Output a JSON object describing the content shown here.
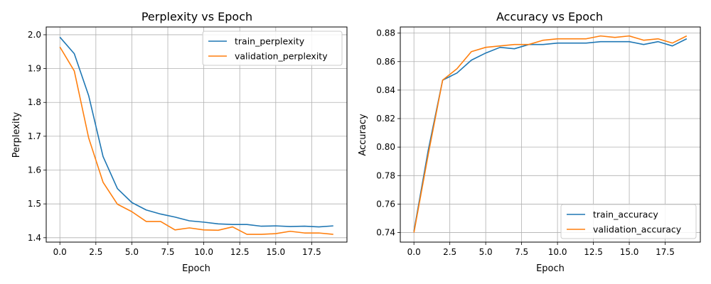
{
  "chart_data": [
    {
      "type": "line",
      "title": "Perplexity vs Epoch",
      "xlabel": "Epoch",
      "ylabel": "Perplexity",
      "xlim": [
        -0.95,
        19.95
      ],
      "ylim": [
        1.387,
        2.023
      ],
      "xticks": [
        0,
        2.5,
        5,
        7.5,
        10,
        12.5,
        15,
        17.5
      ],
      "xtick_labels": [
        "0.0",
        "2.5",
        "5.0",
        "7.5",
        "10.0",
        "12.5",
        "15.0",
        "17.5"
      ],
      "yticks": [
        1.4,
        1.5,
        1.6,
        1.7,
        1.8,
        1.9,
        2.0
      ],
      "ytick_labels": [
        "1.4",
        "1.5",
        "1.6",
        "1.7",
        "1.8",
        "1.9",
        "2.0"
      ],
      "grid": true,
      "legend": "top-right",
      "x": [
        0,
        1,
        2,
        3,
        4,
        5,
        6,
        7,
        8,
        9,
        10,
        11,
        12,
        13,
        14,
        15,
        16,
        17,
        18,
        19
      ],
      "series": [
        {
          "name": "train_perplexity",
          "color": "#1f77b4",
          "values": [
            1.993,
            1.944,
            1.82,
            1.64,
            1.545,
            1.504,
            1.482,
            1.47,
            1.461,
            1.45,
            1.446,
            1.441,
            1.439,
            1.439,
            1.434,
            1.435,
            1.433,
            1.434,
            1.432,
            1.435
          ]
        },
        {
          "name": "validation_perplexity",
          "color": "#ff7f0e",
          "values": [
            1.964,
            1.893,
            1.695,
            1.564,
            1.499,
            1.477,
            1.448,
            1.448,
            1.423,
            1.429,
            1.423,
            1.422,
            1.432,
            1.41,
            1.41,
            1.412,
            1.419,
            1.414,
            1.414,
            1.41
          ]
        }
      ]
    },
    {
      "type": "line",
      "title": "Accuracy vs Epoch",
      "xlabel": "Epoch",
      "ylabel": "Accuracy",
      "xlim": [
        -0.95,
        19.95
      ],
      "ylim": [
        0.7333,
        0.8843
      ],
      "xticks": [
        0,
        2.5,
        5,
        7.5,
        10,
        12.5,
        15,
        17.5
      ],
      "xtick_labels": [
        "0.0",
        "2.5",
        "5.0",
        "7.5",
        "10.0",
        "12.5",
        "15.0",
        "17.5"
      ],
      "yticks": [
        0.74,
        0.76,
        0.78,
        0.8,
        0.82,
        0.84,
        0.86,
        0.88
      ],
      "ytick_labels": [
        "0.74",
        "0.76",
        "0.78",
        "0.80",
        "0.82",
        "0.84",
        "0.86",
        "0.88"
      ],
      "grid": true,
      "legend": "bottom-right",
      "x": [
        0,
        1,
        2,
        3,
        4,
        5,
        6,
        7,
        8,
        9,
        10,
        11,
        12,
        13,
        14,
        15,
        16,
        17,
        18,
        19
      ],
      "series": [
        {
          "name": "train_accuracy",
          "color": "#1f77b4",
          "values": [
            0.741,
            0.798,
            0.847,
            0.852,
            0.861,
            0.866,
            0.87,
            0.869,
            0.872,
            0.872,
            0.873,
            0.873,
            0.873,
            0.874,
            0.874,
            0.874,
            0.872,
            0.874,
            0.871,
            0.876
          ]
        },
        {
          "name": "validation_accuracy",
          "color": "#ff7f0e",
          "values": [
            0.74,
            0.795,
            0.847,
            0.855,
            0.867,
            0.87,
            0.871,
            0.872,
            0.872,
            0.875,
            0.876,
            0.876,
            0.876,
            0.878,
            0.877,
            0.878,
            0.875,
            0.876,
            0.873,
            0.878
          ]
        }
      ]
    }
  ]
}
